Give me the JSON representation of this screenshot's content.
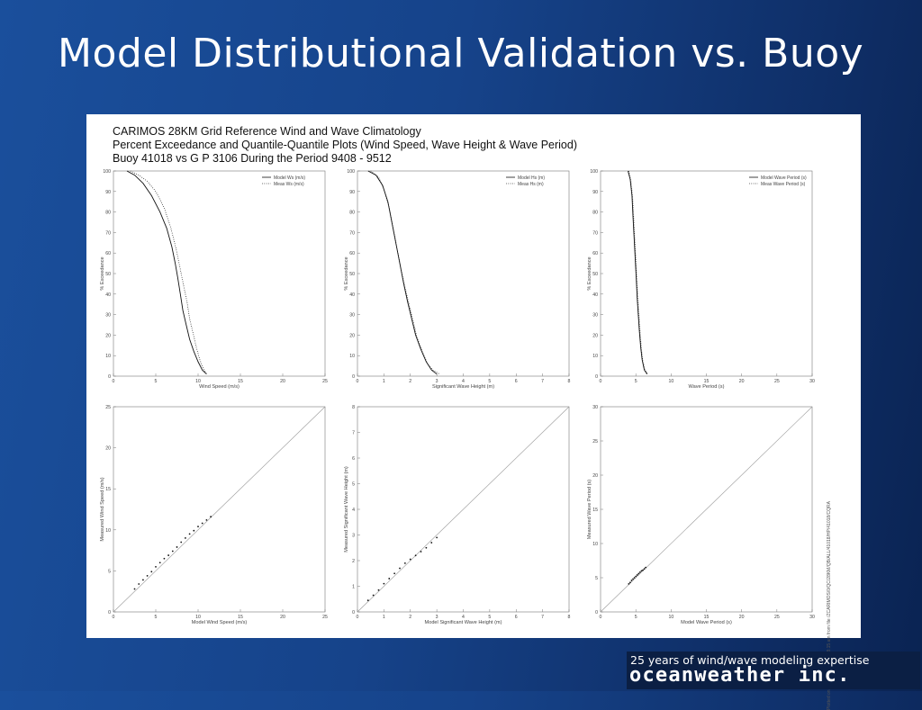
{
  "slide": {
    "title": "Model Distributional Validation vs. Buoy"
  },
  "figure": {
    "header_lines": [
      "CARIMOS 28KM Grid Reference Wind and Wave Climatology",
      "Percent Exceedance and Quantile-Quantile Plots (Wind Speed, Wave Height & Wave Period)",
      "Buoy 41018 vs  G P  3106 During the Period 9408 - 9512"
    ],
    "side_note": "Plotted on Nov 13, 2000  11:58:15 am from file /ZCARIMOS/0/QC/28KM/QB/ALL/41018/HP/41018/CQRA"
  },
  "footer": {
    "tagline": "25 years of wind/wave modeling expertise",
    "brand": "oceanweather inc."
  },
  "chart_data": [
    {
      "type": "line",
      "name": "exceed-wind",
      "xlabel": "Wind Speed (m/s)",
      "ylabel": "% Exceedance",
      "xlim": [
        0,
        25
      ],
      "ylim": [
        0,
        100
      ],
      "xticks": [
        0,
        5,
        10,
        15,
        20,
        25
      ],
      "yticks": [
        0,
        10,
        20,
        30,
        40,
        50,
        60,
        70,
        80,
        90,
        100
      ],
      "legend": "top-right",
      "series": [
        {
          "name": "Model Ws (m/s)",
          "style": "solid",
          "x": [
            1.6,
            2.5,
            3.5,
            4.5,
            5.5,
            6.3,
            6.9,
            7.3,
            7.6,
            7.9,
            8.2,
            8.6,
            9.0,
            9.5,
            10.0,
            10.5,
            11.0
          ],
          "y": [
            100,
            98,
            94,
            88,
            80,
            72,
            63,
            55,
            48,
            40,
            32,
            25,
            18,
            12,
            7,
            3,
            1
          ]
        },
        {
          "name": "Meas Ws (m/s)",
          "style": "dotted",
          "x": [
            2.0,
            3.0,
            4.0,
            5.0,
            6.0,
            6.8,
            7.4,
            7.9,
            8.3,
            8.7,
            9.0,
            9.4,
            9.8,
            10.2,
            10.6,
            11.0
          ],
          "y": [
            100,
            98,
            95,
            90,
            82,
            72,
            62,
            52,
            44,
            36,
            28,
            21,
            14,
            8,
            4,
            1
          ]
        }
      ]
    },
    {
      "type": "line",
      "name": "exceed-height",
      "xlabel": "Significant Wave Height (m)",
      "ylabel": "% Exceedance",
      "xlim": [
        0,
        8
      ],
      "ylim": [
        0,
        100
      ],
      "xticks": [
        0,
        1,
        2,
        3,
        4,
        5,
        6,
        7,
        8
      ],
      "yticks": [
        0,
        10,
        20,
        30,
        40,
        50,
        60,
        70,
        80,
        90,
        100
      ],
      "legend": "top-right",
      "series": [
        {
          "name": "Model Hs (m)",
          "style": "solid",
          "x": [
            0.4,
            0.7,
            0.95,
            1.15,
            1.3,
            1.45,
            1.6,
            1.75,
            1.9,
            2.05,
            2.2,
            2.4,
            2.6,
            2.8,
            3.0
          ],
          "y": [
            100,
            98,
            93,
            85,
            75,
            65,
            55,
            45,
            36,
            28,
            20,
            13,
            7,
            3,
            1
          ]
        },
        {
          "name": "Meas Hs (m)",
          "style": "dotted",
          "x": [
            0.5,
            0.8,
            1.0,
            1.2,
            1.35,
            1.5,
            1.65,
            1.8,
            1.95,
            2.1,
            2.25,
            2.45,
            2.65,
            2.85,
            3.1
          ],
          "y": [
            100,
            97,
            91,
            82,
            72,
            62,
            52,
            43,
            35,
            27,
            19,
            12,
            6,
            3,
            1
          ]
        }
      ]
    },
    {
      "type": "line",
      "name": "exceed-period",
      "xlabel": "Wave Period (s)",
      "ylabel": "% Exceedance",
      "xlim": [
        0,
        30
      ],
      "ylim": [
        0,
        100
      ],
      "xticks": [
        0,
        5,
        10,
        15,
        20,
        25,
        30
      ],
      "yticks": [
        0,
        10,
        20,
        30,
        40,
        50,
        60,
        70,
        80,
        90,
        100
      ],
      "legend": "top-right",
      "series": [
        {
          "name": "Model Wave Period (s)",
          "style": "solid",
          "x": [
            3.9,
            4.2,
            4.45,
            4.6,
            4.75,
            4.9,
            5.05,
            5.2,
            5.35,
            5.5,
            5.7,
            5.9,
            6.2,
            6.6
          ],
          "y": [
            100,
            96,
            88,
            78,
            68,
            58,
            48,
            38,
            30,
            22,
            14,
            8,
            3,
            1
          ]
        },
        {
          "name": "Meas Wave Period (s)",
          "style": "dotted",
          "x": [
            4.0,
            4.3,
            4.55,
            4.7,
            4.85,
            5.0,
            5.15,
            5.3,
            5.45,
            5.6,
            5.8,
            6.0,
            6.3,
            6.7
          ],
          "y": [
            100,
            95,
            87,
            77,
            67,
            57,
            47,
            37,
            29,
            21,
            13,
            7,
            3,
            1
          ]
        }
      ]
    },
    {
      "type": "scatter",
      "name": "qq-wind",
      "xlabel": "Model Wind Speed (m/s)",
      "ylabel": "Measured Wind Speed (m/s)",
      "xlim": [
        0,
        25
      ],
      "ylim": [
        0,
        25
      ],
      "xticks": [
        0,
        5,
        10,
        15,
        20,
        25
      ],
      "yticks": [
        0,
        5,
        10,
        15,
        20,
        25
      ],
      "reference_line": true,
      "x": [
        2.5,
        3.0,
        3.5,
        4.0,
        4.5,
        5.0,
        5.5,
        6.0,
        6.5,
        7.0,
        7.5,
        8.0,
        8.5,
        9.0,
        9.5,
        10.0,
        10.5,
        11.0,
        11.5
      ],
      "y": [
        2.8,
        3.4,
        3.9,
        4.4,
        4.9,
        5.5,
        6.0,
        6.5,
        6.9,
        7.4,
        7.9,
        8.5,
        9.0,
        9.5,
        9.9,
        10.4,
        10.8,
        11.2,
        11.6
      ]
    },
    {
      "type": "scatter",
      "name": "qq-height",
      "xlabel": "Model Significant Wave Height (m)",
      "ylabel": "Measured Significant Wave Height (m)",
      "xlim": [
        0,
        8
      ],
      "ylim": [
        0,
        8
      ],
      "xticks": [
        0,
        1,
        2,
        3,
        4,
        5,
        6,
        7,
        8
      ],
      "yticks": [
        0,
        1,
        2,
        3,
        4,
        5,
        6,
        7,
        8
      ],
      "reference_line": true,
      "x": [
        0.4,
        0.6,
        0.8,
        1.0,
        1.2,
        1.4,
        1.6,
        1.8,
        2.0,
        2.2,
        2.4,
        2.6,
        2.8,
        3.0
      ],
      "y": [
        0.45,
        0.65,
        0.85,
        1.1,
        1.3,
        1.5,
        1.7,
        1.9,
        2.05,
        2.2,
        2.35,
        2.5,
        2.7,
        2.9
      ]
    },
    {
      "type": "scatter",
      "name": "qq-period",
      "xlabel": "Model Wave Period (s)",
      "ylabel": "Measured Wave Period (s)",
      "xlim": [
        0,
        30
      ],
      "ylim": [
        0,
        30
      ],
      "xticks": [
        0,
        5,
        10,
        15,
        20,
        25,
        30
      ],
      "yticks": [
        0,
        5,
        10,
        15,
        20,
        25,
        30
      ],
      "reference_line": true,
      "x": [
        4.0,
        4.2,
        4.4,
        4.6,
        4.8,
        5.0,
        5.2,
        5.4,
        5.6,
        5.8,
        6.0,
        6.2,
        6.4
      ],
      "y": [
        4.1,
        4.3,
        4.6,
        4.8,
        5.0,
        5.2,
        5.4,
        5.6,
        5.8,
        6.0,
        6.1,
        6.3,
        6.5
      ]
    }
  ]
}
